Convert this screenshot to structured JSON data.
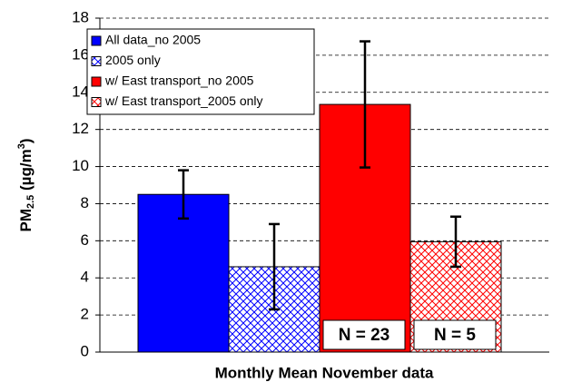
{
  "chart_data": {
    "type": "bar",
    "y_label": {
      "parts": [
        "PM",
        "2.5",
        " (µg/m",
        "3",
        ")"
      ]
    },
    "x_label": "Monthly Mean November data",
    "categories": [
      null
    ],
    "series": [
      {
        "name": "All data_no 2005",
        "color": "#0000ff",
        "hatch": false,
        "values": [
          8.5
        ],
        "errors": [
          1.3
        ]
      },
      {
        "name": "2005 only",
        "color": "#0000ff",
        "hatch": true,
        "values": [
          4.6
        ],
        "errors": [
          2.3
        ]
      },
      {
        "name": "w/ East transport_no 2005",
        "color": "#ff0000",
        "hatch": false,
        "values": [
          13.35
        ],
        "errors": [
          3.4
        ]
      },
      {
        "name": "w/ East transport_2005 only",
        "color": "#ff0000",
        "hatch": true,
        "values": [
          5.95
        ],
        "errors": [
          1.35
        ]
      }
    ],
    "annotations": [
      "N = 23",
      "N = 5"
    ],
    "ylim": [
      0,
      18
    ],
    "yticks": [
      0,
      2,
      4,
      6,
      8,
      10,
      12,
      14,
      16,
      18
    ],
    "grid": true
  }
}
